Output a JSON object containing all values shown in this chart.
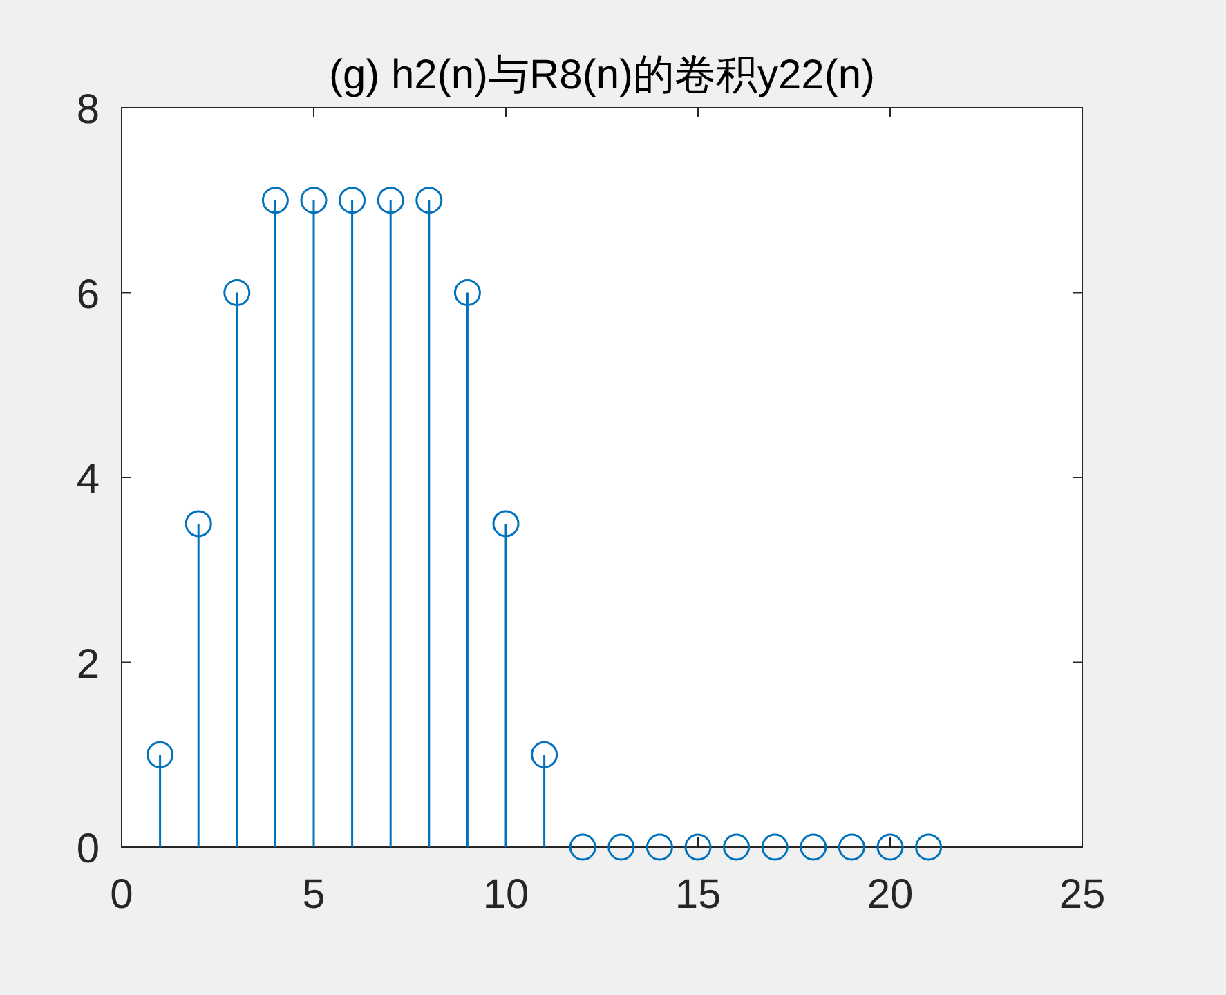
{
  "chart_data": {
    "type": "lollipop",
    "title": "(g) h2(n)与R8(n)的卷积y22(n)",
    "x": [
      1,
      2,
      3,
      4,
      5,
      6,
      7,
      8,
      9,
      10,
      11,
      12,
      13,
      14,
      15,
      16,
      17,
      18,
      19,
      20,
      21
    ],
    "values": [
      1,
      3.5,
      6,
      7,
      7,
      7,
      7,
      7,
      6,
      3.5,
      1,
      0,
      0,
      0,
      0,
      0,
      0,
      0,
      0,
      0,
      0
    ],
    "color": "#0072bd",
    "marker": "circle",
    "xlim": [
      0,
      25
    ],
    "xticks": [
      0,
      5,
      10,
      15,
      20,
      25
    ],
    "ylim": [
      0,
      8
    ],
    "yticks": [
      0,
      2,
      4,
      6,
      8
    ]
  }
}
